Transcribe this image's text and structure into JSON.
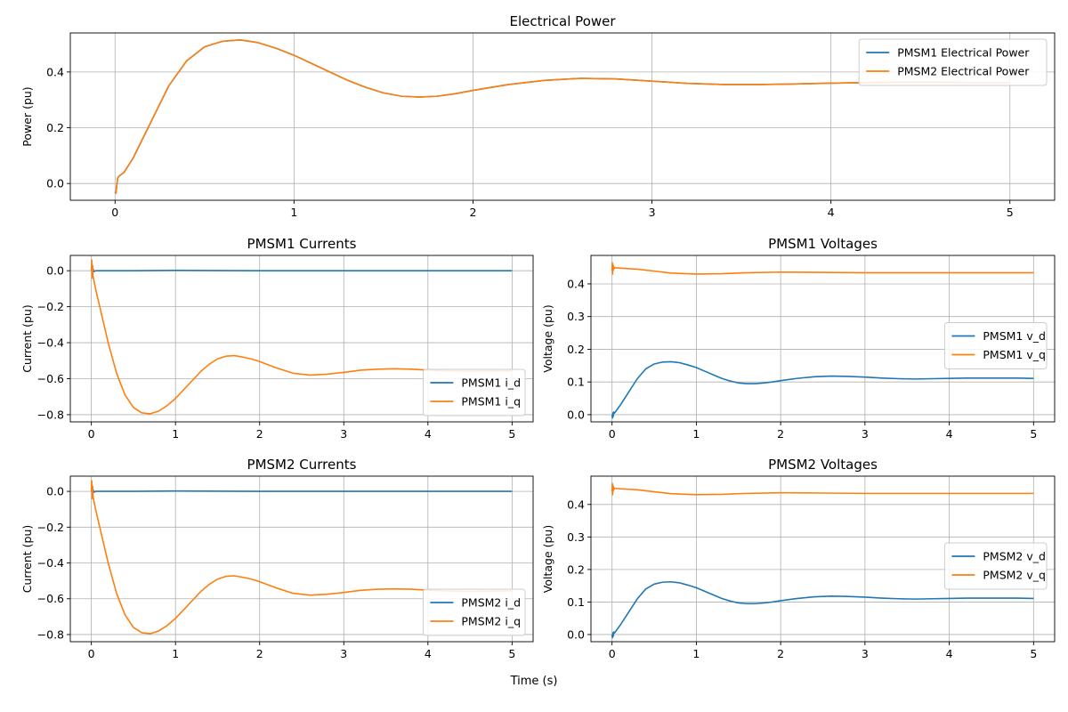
{
  "figure": {
    "shared_xlabel": "Time (s)"
  },
  "chart_data": [
    {
      "id": "power",
      "type": "line",
      "title": "Electrical Power",
      "xlabel": "",
      "ylabel": "Power (pu)",
      "xlim": [
        -0.25,
        5.25
      ],
      "ylim": [
        -0.06,
        0.54
      ],
      "xticks": [
        0,
        1,
        2,
        3,
        4,
        5
      ],
      "xtick_labels": [
        "0",
        "1",
        "2",
        "3",
        "4",
        "5"
      ],
      "yticks": [
        0.0,
        0.2,
        0.4
      ],
      "ytick_labels": [
        "0.0",
        "0.2",
        "0.4"
      ],
      "grid": true,
      "legend_position": "top-right",
      "series": [
        {
          "name": "PMSM1 Electrical Power",
          "color": "#1f77b4",
          "x": [
            0,
            0.005,
            0.01,
            0.015,
            0.02,
            0.03,
            0.05,
            0.1,
            0.2,
            0.3,
            0.4,
            0.5,
            0.6,
            0.7,
            0.8,
            0.9,
            1.0,
            1.1,
            1.2,
            1.3,
            1.4,
            1.5,
            1.6,
            1.7,
            1.8,
            1.9,
            2.0,
            2.2,
            2.4,
            2.6,
            2.8,
            3.0,
            3.2,
            3.4,
            3.6,
            3.8,
            4.0,
            4.2,
            4.4,
            4.6,
            4.8,
            5.0
          ],
          "y": [
            -0.03,
            -0.035,
            -0.005,
            0.02,
            0.025,
            0.03,
            0.04,
            0.09,
            0.22,
            0.35,
            0.44,
            0.49,
            0.51,
            0.515,
            0.505,
            0.485,
            0.46,
            0.43,
            0.4,
            0.37,
            0.345,
            0.325,
            0.313,
            0.31,
            0.313,
            0.322,
            0.334,
            0.355,
            0.37,
            0.377,
            0.375,
            0.367,
            0.359,
            0.355,
            0.355,
            0.357,
            0.36,
            0.362,
            0.363,
            0.363,
            0.362,
            0.362
          ]
        },
        {
          "name": "PMSM2 Electrical Power",
          "color": "#ff7f0e",
          "x": [
            0,
            0.005,
            0.01,
            0.015,
            0.02,
            0.03,
            0.05,
            0.1,
            0.2,
            0.3,
            0.4,
            0.5,
            0.6,
            0.7,
            0.8,
            0.9,
            1.0,
            1.1,
            1.2,
            1.3,
            1.4,
            1.5,
            1.6,
            1.7,
            1.8,
            1.9,
            2.0,
            2.2,
            2.4,
            2.6,
            2.8,
            3.0,
            3.2,
            3.4,
            3.6,
            3.8,
            4.0,
            4.2,
            4.4,
            4.6,
            4.8,
            5.0
          ],
          "y": [
            -0.03,
            -0.035,
            -0.005,
            0.02,
            0.025,
            0.03,
            0.04,
            0.09,
            0.22,
            0.35,
            0.44,
            0.49,
            0.51,
            0.515,
            0.505,
            0.485,
            0.46,
            0.43,
            0.4,
            0.37,
            0.345,
            0.325,
            0.313,
            0.31,
            0.313,
            0.322,
            0.334,
            0.355,
            0.37,
            0.377,
            0.375,
            0.367,
            0.359,
            0.355,
            0.355,
            0.357,
            0.36,
            0.362,
            0.363,
            0.363,
            0.362,
            0.362
          ]
        }
      ]
    },
    {
      "id": "pmsm1_currents",
      "type": "line",
      "title": "PMSM1 Currents",
      "xlabel": "",
      "ylabel": "Current (pu)",
      "xlim": [
        -0.25,
        5.25
      ],
      "ylim": [
        -0.84,
        0.085
      ],
      "xticks": [
        0,
        1,
        2,
        3,
        4,
        5
      ],
      "xtick_labels": [
        "0",
        "1",
        "2",
        "3",
        "4",
        "5"
      ],
      "yticks": [
        -0.8,
        -0.6,
        -0.4,
        -0.2,
        0.0
      ],
      "ytick_labels": [
        "−0.8",
        "−0.6",
        "−0.4",
        "−0.2",
        "0.0"
      ],
      "grid": true,
      "legend_position": "bottom-right",
      "series": [
        {
          "name": "PMSM1 i_d",
          "color": "#1f77b4",
          "x": [
            0,
            0.005,
            0.01,
            0.02,
            0.03,
            0.05,
            0.5,
            1.0,
            2.0,
            3.0,
            4.0,
            5.0
          ],
          "y": [
            0.0,
            0.02,
            -0.02,
            0.01,
            -0.005,
            0.0,
            0.0,
            0.002,
            0.0,
            0.0,
            0.0,
            0.0
          ]
        },
        {
          "name": "PMSM1 i_q",
          "color": "#ff7f0e",
          "x": [
            0,
            0.005,
            0.01,
            0.015,
            0.02,
            0.05,
            0.1,
            0.2,
            0.3,
            0.4,
            0.5,
            0.6,
            0.7,
            0.8,
            0.9,
            1.0,
            1.1,
            1.2,
            1.3,
            1.4,
            1.5,
            1.6,
            1.7,
            1.8,
            1.9,
            2.0,
            2.2,
            2.4,
            2.6,
            2.8,
            3.0,
            3.2,
            3.4,
            3.6,
            3.8,
            4.0,
            4.2,
            4.4,
            4.6,
            4.8,
            5.0
          ],
          "y": [
            0.0,
            0.06,
            -0.04,
            0.03,
            -0.03,
            -0.1,
            -0.2,
            -0.4,
            -0.57,
            -0.69,
            -0.76,
            -0.79,
            -0.795,
            -0.78,
            -0.75,
            -0.71,
            -0.66,
            -0.61,
            -0.56,
            -0.52,
            -0.49,
            -0.475,
            -0.472,
            -0.48,
            -0.49,
            -0.505,
            -0.54,
            -0.57,
            -0.58,
            -0.575,
            -0.565,
            -0.553,
            -0.547,
            -0.545,
            -0.547,
            -0.552,
            -0.556,
            -0.558,
            -0.558,
            -0.557,
            -0.556
          ]
        }
      ]
    },
    {
      "id": "pmsm1_voltages",
      "type": "line",
      "title": "PMSM1 Voltages",
      "xlabel": "",
      "ylabel": "Voltage (pu)",
      "xlim": [
        -0.25,
        5.25
      ],
      "ylim": [
        -0.022,
        0.487
      ],
      "xticks": [
        0,
        1,
        2,
        3,
        4,
        5
      ],
      "xtick_labels": [
        "0",
        "1",
        "2",
        "3",
        "4",
        "5"
      ],
      "yticks": [
        0.0,
        0.1,
        0.2,
        0.3,
        0.4
      ],
      "ytick_labels": [
        "0.0",
        "0.1",
        "0.2",
        "0.3",
        "0.4"
      ],
      "grid": true,
      "legend_position": "center-right",
      "series": [
        {
          "name": "PMSM1 v_d",
          "color": "#1f77b4",
          "x": [
            0,
            0.005,
            0.01,
            0.015,
            0.02,
            0.03,
            0.05,
            0.1,
            0.2,
            0.3,
            0.4,
            0.5,
            0.6,
            0.7,
            0.8,
            0.9,
            1.0,
            1.1,
            1.2,
            1.3,
            1.4,
            1.5,
            1.6,
            1.7,
            1.8,
            1.9,
            2.0,
            2.2,
            2.4,
            2.6,
            2.8,
            3.0,
            3.2,
            3.4,
            3.6,
            3.8,
            4.0,
            4.2,
            4.4,
            4.6,
            4.8,
            5.0
          ],
          "y": [
            0.0,
            -0.01,
            0.005,
            -0.005,
            0.008,
            0.005,
            0.012,
            0.03,
            0.07,
            0.11,
            0.14,
            0.155,
            0.161,
            0.162,
            0.159,
            0.152,
            0.144,
            0.133,
            0.122,
            0.111,
            0.103,
            0.097,
            0.095,
            0.095,
            0.097,
            0.1,
            0.104,
            0.111,
            0.116,
            0.118,
            0.117,
            0.115,
            0.112,
            0.11,
            0.109,
            0.11,
            0.111,
            0.112,
            0.112,
            0.112,
            0.112,
            0.111
          ]
        },
        {
          "name": "PMSM1 v_q",
          "color": "#ff7f0e",
          "x": [
            0,
            0.003,
            0.006,
            0.009,
            0.012,
            0.016,
            0.02,
            0.03,
            0.05,
            0.1,
            0.3,
            0.5,
            0.7,
            1.0,
            1.3,
            1.6,
            2.0,
            2.5,
            3.0,
            3.5,
            4.0,
            4.5,
            5.0
          ],
          "y": [
            0.44,
            0.465,
            0.43,
            0.46,
            0.44,
            0.455,
            0.445,
            0.45,
            0.449,
            0.448,
            0.445,
            0.439,
            0.433,
            0.43,
            0.431,
            0.434,
            0.436,
            0.435,
            0.434,
            0.434,
            0.434,
            0.434,
            0.434
          ]
        }
      ]
    },
    {
      "id": "pmsm2_currents",
      "type": "line",
      "title": "PMSM2 Currents",
      "xlabel": "",
      "ylabel": "Current (pu)",
      "xlim": [
        -0.25,
        5.25
      ],
      "ylim": [
        -0.84,
        0.085
      ],
      "xticks": [
        0,
        1,
        2,
        3,
        4,
        5
      ],
      "xtick_labels": [
        "0",
        "1",
        "2",
        "3",
        "4",
        "5"
      ],
      "yticks": [
        -0.8,
        -0.6,
        -0.4,
        -0.2,
        0.0
      ],
      "ytick_labels": [
        "−0.8",
        "−0.6",
        "−0.4",
        "−0.2",
        "0.0"
      ],
      "grid": true,
      "legend_position": "bottom-right",
      "series": [
        {
          "name": "PMSM2 i_d",
          "color": "#1f77b4",
          "x": [
            0,
            0.005,
            0.01,
            0.02,
            0.03,
            0.05,
            0.5,
            1.0,
            2.0,
            3.0,
            4.0,
            5.0
          ],
          "y": [
            0.0,
            0.02,
            -0.02,
            0.01,
            -0.005,
            0.0,
            0.0,
            0.002,
            0.0,
            0.0,
            0.0,
            0.0
          ]
        },
        {
          "name": "PMSM2 i_q",
          "color": "#ff7f0e",
          "x": [
            0,
            0.005,
            0.01,
            0.015,
            0.02,
            0.05,
            0.1,
            0.2,
            0.3,
            0.4,
            0.5,
            0.6,
            0.7,
            0.8,
            0.9,
            1.0,
            1.1,
            1.2,
            1.3,
            1.4,
            1.5,
            1.6,
            1.7,
            1.8,
            1.9,
            2.0,
            2.2,
            2.4,
            2.6,
            2.8,
            3.0,
            3.2,
            3.4,
            3.6,
            3.8,
            4.0,
            4.2,
            4.4,
            4.6,
            4.8,
            5.0
          ],
          "y": [
            0.0,
            0.06,
            -0.04,
            0.03,
            -0.03,
            -0.1,
            -0.2,
            -0.4,
            -0.57,
            -0.69,
            -0.76,
            -0.79,
            -0.795,
            -0.78,
            -0.75,
            -0.71,
            -0.66,
            -0.61,
            -0.56,
            -0.52,
            -0.49,
            -0.475,
            -0.472,
            -0.48,
            -0.49,
            -0.505,
            -0.54,
            -0.57,
            -0.58,
            -0.575,
            -0.565,
            -0.553,
            -0.547,
            -0.545,
            -0.547,
            -0.552,
            -0.556,
            -0.558,
            -0.558,
            -0.557,
            -0.556
          ]
        }
      ]
    },
    {
      "id": "pmsm2_voltages",
      "type": "line",
      "title": "PMSM2 Voltages",
      "xlabel": "",
      "ylabel": "Voltage (pu)",
      "xlim": [
        -0.25,
        5.25
      ],
      "ylim": [
        -0.022,
        0.487
      ],
      "xticks": [
        0,
        1,
        2,
        3,
        4,
        5
      ],
      "xtick_labels": [
        "0",
        "1",
        "2",
        "3",
        "4",
        "5"
      ],
      "yticks": [
        0.0,
        0.1,
        0.2,
        0.3,
        0.4
      ],
      "ytick_labels": [
        "0.0",
        "0.1",
        "0.2",
        "0.3",
        "0.4"
      ],
      "grid": true,
      "legend_position": "center-right",
      "series": [
        {
          "name": "PMSM2 v_d",
          "color": "#1f77b4",
          "x": [
            0,
            0.005,
            0.01,
            0.015,
            0.02,
            0.03,
            0.05,
            0.1,
            0.2,
            0.3,
            0.4,
            0.5,
            0.6,
            0.7,
            0.8,
            0.9,
            1.0,
            1.1,
            1.2,
            1.3,
            1.4,
            1.5,
            1.6,
            1.7,
            1.8,
            1.9,
            2.0,
            2.2,
            2.4,
            2.6,
            2.8,
            3.0,
            3.2,
            3.4,
            3.6,
            3.8,
            4.0,
            4.2,
            4.4,
            4.6,
            4.8,
            5.0
          ],
          "y": [
            0.0,
            -0.01,
            0.005,
            -0.005,
            0.008,
            0.005,
            0.012,
            0.03,
            0.07,
            0.11,
            0.14,
            0.155,
            0.161,
            0.162,
            0.159,
            0.152,
            0.144,
            0.133,
            0.122,
            0.111,
            0.103,
            0.097,
            0.095,
            0.095,
            0.097,
            0.1,
            0.104,
            0.111,
            0.116,
            0.118,
            0.117,
            0.115,
            0.112,
            0.11,
            0.109,
            0.11,
            0.111,
            0.112,
            0.112,
            0.112,
            0.112,
            0.111
          ]
        },
        {
          "name": "PMSM2 v_q",
          "color": "#ff7f0e",
          "x": [
            0,
            0.003,
            0.006,
            0.009,
            0.012,
            0.016,
            0.02,
            0.03,
            0.05,
            0.1,
            0.3,
            0.5,
            0.7,
            1.0,
            1.3,
            1.6,
            2.0,
            2.5,
            3.0,
            3.5,
            4.0,
            4.5,
            5.0
          ],
          "y": [
            0.44,
            0.465,
            0.43,
            0.46,
            0.44,
            0.455,
            0.445,
            0.45,
            0.449,
            0.448,
            0.445,
            0.439,
            0.433,
            0.43,
            0.431,
            0.434,
            0.436,
            0.435,
            0.434,
            0.434,
            0.434,
            0.434,
            0.434
          ]
        }
      ]
    }
  ]
}
